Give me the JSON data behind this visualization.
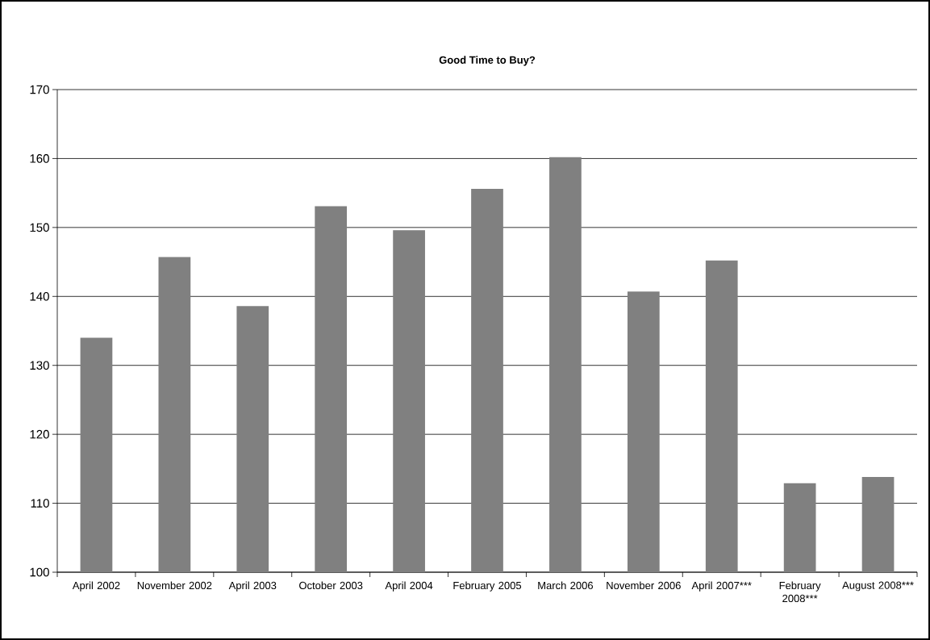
{
  "chart_data": {
    "type": "bar",
    "title": "Good Time to Buy?",
    "categories": [
      "April 2002",
      "November 2002",
      "April 2003",
      "October 2003",
      "April 2004",
      "February 2005",
      "March 2006",
      "November 2006",
      "April 2007***",
      "February 2008***",
      "August 2008***"
    ],
    "values": [
      134.0,
      145.7,
      138.6,
      153.1,
      149.6,
      155.6,
      160.2,
      140.7,
      145.2,
      112.9,
      113.8
    ],
    "color": "#808080",
    "ylim": [
      100,
      170
    ],
    "yticks": [
      100,
      110,
      120,
      130,
      140,
      150,
      160,
      170
    ],
    "grid": "y"
  }
}
